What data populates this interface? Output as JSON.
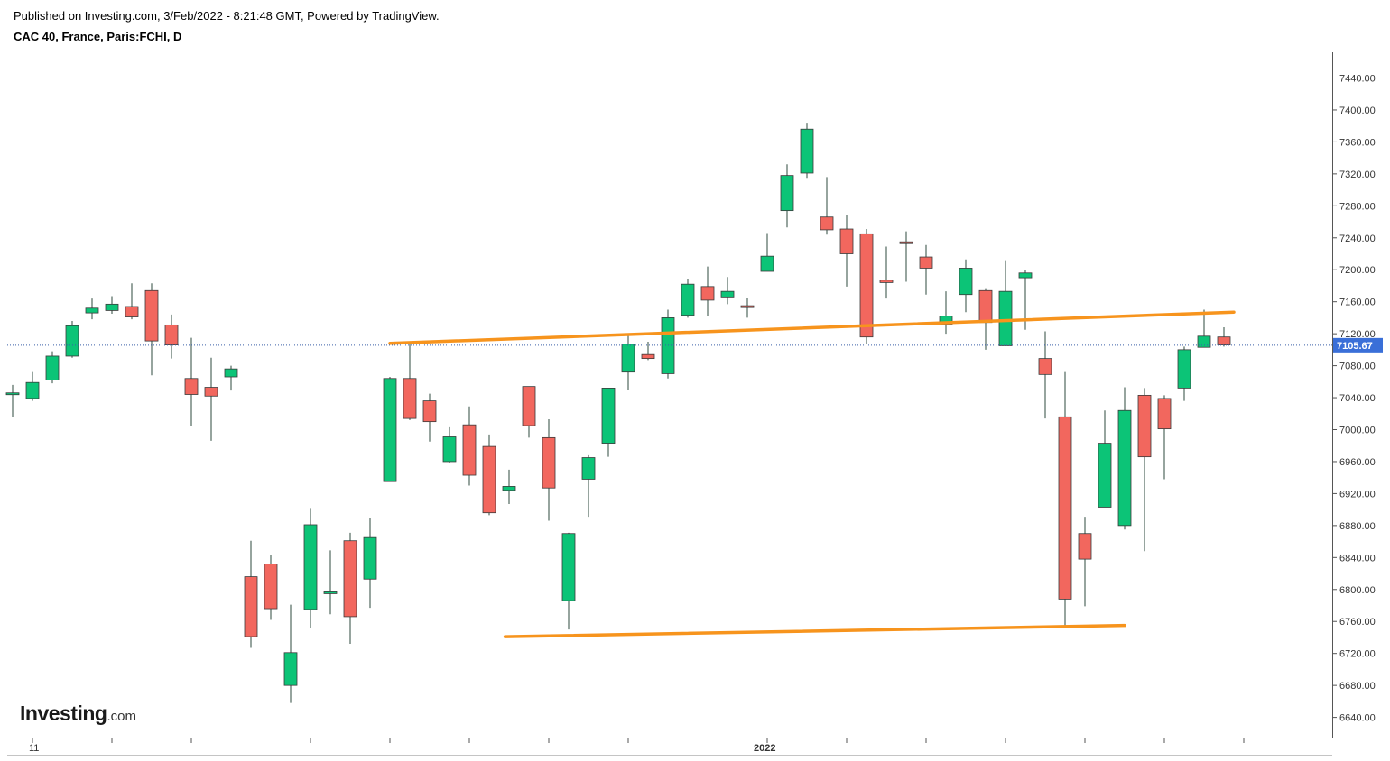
{
  "header": {
    "published": "Published on Investing.com, 3/Feb/2022 - 8:21:48 GMT, Powered by TradingView.",
    "symbol": "CAC 40, France, Paris:FCHI, D"
  },
  "logo": {
    "main": "Investing",
    "suffix": ".com"
  },
  "colors": {
    "up": "#0cc477",
    "down": "#f2675e",
    "trendline": "#f7941d",
    "price_label_bg": "#3a6fd8",
    "axis": "#555555"
  },
  "chart_data": {
    "type": "candlestick",
    "timeframe": "D",
    "ylim": [
      6620,
      7460
    ],
    "y_ticks": [
      6640,
      6680,
      6720,
      6760,
      6800,
      6840,
      6880,
      6920,
      6960,
      7000,
      7040,
      7080,
      7120,
      7160,
      7200,
      7240,
      7280,
      7320,
      7360,
      7400,
      7440
    ],
    "y_tick_labels": [
      "6640.00",
      "6680.00",
      "6720.00",
      "6760.00",
      "6800.00",
      "6840.00",
      "6880.00",
      "6920.00",
      "6960.00",
      "7000.00",
      "7040.00",
      "7080.00",
      "7120.00",
      "7160.00",
      "7200.00",
      "7240.00",
      "7280.00",
      "7320.00",
      "7360.00",
      "7400.00",
      "7440.00"
    ],
    "x_labels": [
      {
        "index": 1,
        "label": "11"
      },
      {
        "index": 38,
        "label": "2022"
      }
    ],
    "x_ticks": [
      1,
      5,
      9,
      15,
      19,
      23,
      27,
      31,
      38,
      42,
      46,
      50,
      54,
      58,
      62
    ],
    "last_price": 7105.67,
    "last_price_label": "7105.67",
    "candles": [
      {
        "o": 7046,
        "h": 7056,
        "l": 7016,
        "c": 7046
      },
      {
        "o": 7039,
        "h": 7072,
        "l": 7036,
        "c": 7059
      },
      {
        "o": 7062,
        "h": 7098,
        "l": 7058,
        "c": 7092
      },
      {
        "o": 7092,
        "h": 7136,
        "l": 7090,
        "c": 7130
      },
      {
        "o": 7146,
        "h": 7164,
        "l": 7138,
        "c": 7152
      },
      {
        "o": 7149,
        "h": 7167,
        "l": 7145,
        "c": 7157
      },
      {
        "o": 7154,
        "h": 7183,
        "l": 7138,
        "c": 7141
      },
      {
        "o": 7174,
        "h": 7183,
        "l": 7068,
        "c": 7111
      },
      {
        "o": 7131,
        "h": 7144,
        "l": 7089,
        "c": 7106
      },
      {
        "o": 7064,
        "h": 7115,
        "l": 7004,
        "c": 7044
      },
      {
        "o": 7053,
        "h": 7090,
        "l": 6986,
        "c": 7042
      },
      {
        "o": 7066,
        "h": 7080,
        "l": 7049,
        "c": 7076
      },
      {
        "o": 6816,
        "h": 6861,
        "l": 6727,
        "c": 6741
      },
      {
        "o": 6832,
        "h": 6843,
        "l": 6762,
        "c": 6776
      },
      {
        "o": 6680,
        "h": 6781,
        "l": 6658,
        "c": 6721
      },
      {
        "o": 6775,
        "h": 6902,
        "l": 6752,
        "c": 6881
      },
      {
        "o": 6796,
        "h": 6849,
        "l": 6769,
        "c": 6797
      },
      {
        "o": 6861,
        "h": 6871,
        "l": 6732,
        "c": 6766
      },
      {
        "o": 6813,
        "h": 6889,
        "l": 6777,
        "c": 6865
      },
      {
        "o": 6935,
        "h": 7066,
        "l": 6935,
        "c": 7064
      },
      {
        "o": 7064,
        "h": 7108,
        "l": 7012,
        "c": 7014
      },
      {
        "o": 7036,
        "h": 7045,
        "l": 6985,
        "c": 7010
      },
      {
        "o": 6960,
        "h": 7003,
        "l": 6958,
        "c": 6991
      },
      {
        "o": 7006,
        "h": 7029,
        "l": 6930,
        "c": 6943
      },
      {
        "o": 6979,
        "h": 6994,
        "l": 6893,
        "c": 6896
      },
      {
        "o": 6924,
        "h": 6950,
        "l": 6907,
        "c": 6929
      },
      {
        "o": 7054,
        "h": 7054,
        "l": 6990,
        "c": 7005
      },
      {
        "o": 6990,
        "h": 7013,
        "l": 6886,
        "c": 6927
      },
      {
        "o": 6786,
        "h": 6871,
        "l": 6750,
        "c": 6870
      },
      {
        "o": 6938,
        "h": 6968,
        "l": 6891,
        "c": 6965
      },
      {
        "o": 6983,
        "h": 7052,
        "l": 6966,
        "c": 7052
      },
      {
        "o": 7072,
        "h": 7120,
        "l": 7050,
        "c": 7107
      },
      {
        "o": 7094,
        "h": 7110,
        "l": 7087,
        "c": 7089
      },
      {
        "o": 7070,
        "h": 7150,
        "l": 7064,
        "c": 7140
      },
      {
        "o": 7143,
        "h": 7189,
        "l": 7140,
        "c": 7182
      },
      {
        "o": 7179,
        "h": 7204,
        "l": 7142,
        "c": 7162
      },
      {
        "o": 7166,
        "h": 7191,
        "l": 7157,
        "c": 7173
      },
      {
        "o": 7155,
        "h": 7165,
        "l": 7140,
        "c": 7154
      },
      {
        "o": 7198,
        "h": 7246,
        "l": 7198,
        "c": 7217
      },
      {
        "o": 7274,
        "h": 7332,
        "l": 7253,
        "c": 7318
      },
      {
        "o": 7321,
        "h": 7384,
        "l": 7315,
        "c": 7376
      },
      {
        "o": 7266,
        "h": 7316,
        "l": 7244,
        "c": 7250
      },
      {
        "o": 7251,
        "h": 7269,
        "l": 7179,
        "c": 7220
      },
      {
        "o": 7245,
        "h": 7251,
        "l": 7107,
        "c": 7116
      },
      {
        "o": 7187,
        "h": 7229,
        "l": 7164,
        "c": 7184
      },
      {
        "o": 7235,
        "h": 7248,
        "l": 7185,
        "c": 7234
      },
      {
        "o": 7216,
        "h": 7231,
        "l": 7169,
        "c": 7202
      },
      {
        "o": 7132,
        "h": 7173,
        "l": 7120,
        "c": 7142
      },
      {
        "o": 7169,
        "h": 7213,
        "l": 7147,
        "c": 7202
      },
      {
        "o": 7174,
        "h": 7177,
        "l": 7100,
        "c": 7134
      },
      {
        "o": 7105,
        "h": 7212,
        "l": 7105,
        "c": 7173
      },
      {
        "o": 7190,
        "h": 7200,
        "l": 7125,
        "c": 7196
      },
      {
        "o": 7089,
        "h": 7123,
        "l": 7014,
        "c": 7069
      },
      {
        "o": 7016,
        "h": 7072,
        "l": 6754,
        "c": 6788
      },
      {
        "o": 6870,
        "h": 6891,
        "l": 6779,
        "c": 6838
      },
      {
        "o": 6903,
        "h": 7024,
        "l": 6903,
        "c": 6983
      },
      {
        "o": 6880,
        "h": 7053,
        "l": 6875,
        "c": 7024
      },
      {
        "o": 7043,
        "h": 7052,
        "l": 6848,
        "c": 6966
      },
      {
        "o": 7039,
        "h": 7043,
        "l": 6938,
        "c": 7001
      },
      {
        "o": 7052,
        "h": 7104,
        "l": 7036,
        "c": 7100
      },
      {
        "o": 7103,
        "h": 7150,
        "l": 7103,
        "c": 7117
      },
      {
        "o": 7116,
        "h": 7128,
        "l": 7104,
        "c": 7106
      }
    ],
    "trendlines": [
      {
        "x1": 19.0,
        "y1": 7108,
        "x2": 61.5,
        "y2": 7147
      },
      {
        "x1": 24.8,
        "y1": 6741,
        "x2": 56.0,
        "y2": 6755
      }
    ]
  }
}
